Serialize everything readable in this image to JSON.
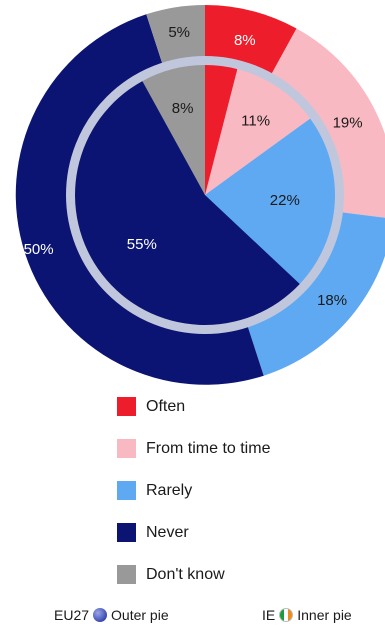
{
  "chart_data": {
    "type": "pie",
    "categories": [
      "Often",
      "From time to time",
      "Rarely",
      "Never",
      "Don't know"
    ],
    "colors": [
      "#ee1d2b",
      "#f9b9c3",
      "#5ea9f2",
      "#0b1472",
      "#999999"
    ],
    "ring_color": "#c0c7dd",
    "series": [
      {
        "name": "EU27",
        "values": [
          8,
          19,
          18,
          50,
          5
        ],
        "labels": [
          "8%",
          "19%",
          "18%",
          "50%",
          "5%"
        ]
      },
      {
        "name": "IE",
        "values": [
          4,
          11,
          22,
          55,
          8
        ],
        "labels": [
          "",
          "11%",
          "22%",
          "55%",
          "8%"
        ]
      }
    ],
    "label_colors": [
      "#ffffff",
      "#1a1a1a",
      "#1a1a1a",
      "#ffffff",
      "#1a1a1a"
    ]
  },
  "legend": {
    "items": [
      {
        "label": "Often"
      },
      {
        "label": "From time to time"
      },
      {
        "label": "Rarely"
      },
      {
        "label": "Never"
      },
      {
        "label": "Don't know"
      }
    ]
  },
  "footer": {
    "outer_label_prefix": "EU27",
    "outer_label_suffix": "Outer pie",
    "outer_icon": "globe-icon",
    "inner_label_prefix": "IE",
    "inner_label_suffix": "Inner pie",
    "inner_icon": "irish-flag-icon"
  }
}
